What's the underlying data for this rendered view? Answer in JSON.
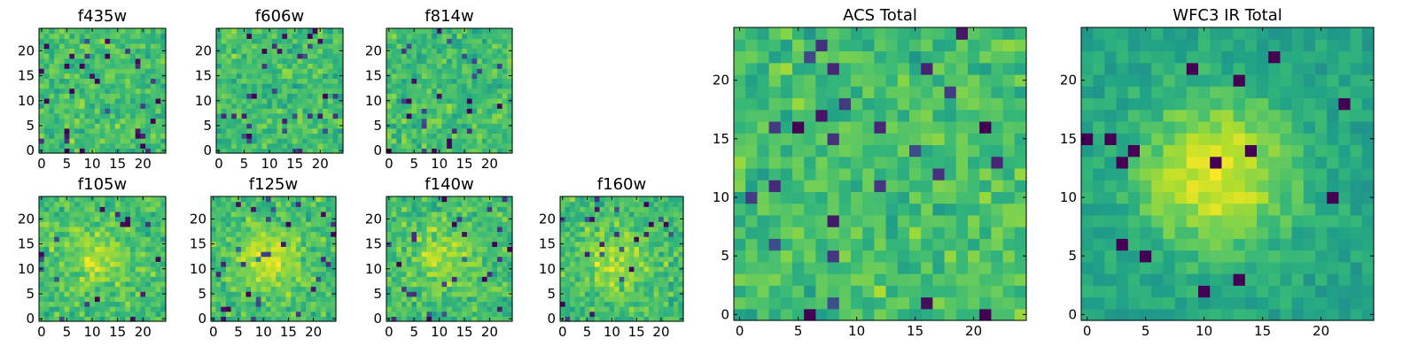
{
  "chart_data": [
    {
      "type": "heatmap",
      "title": "f435w",
      "xticks": [
        0,
        5,
        10,
        15,
        20
      ],
      "yticks": [
        0,
        5,
        10,
        15,
        20
      ],
      "xlim": [
        -0.5,
        24.5
      ],
      "ylim": [
        -0.5,
        24.5
      ],
      "grid": false,
      "colormap": "viridis",
      "shape": [
        25,
        25
      ],
      "generator": {
        "seed": 11,
        "mode": "noise",
        "blob": 0
      }
    },
    {
      "type": "heatmap",
      "title": "f606w",
      "xticks": [
        0,
        5,
        10,
        15,
        20
      ],
      "yticks": [
        0,
        5,
        10,
        15,
        20
      ],
      "xlim": [
        -0.5,
        24.5
      ],
      "ylim": [
        -0.5,
        24.5
      ],
      "grid": false,
      "colormap": "viridis",
      "shape": [
        25,
        25
      ],
      "generator": {
        "seed": 23,
        "mode": "noise",
        "blob": 0
      }
    },
    {
      "type": "heatmap",
      "title": "f814w",
      "xticks": [
        0,
        5,
        10,
        15,
        20
      ],
      "yticks": [
        0,
        5,
        10,
        15,
        20
      ],
      "xlim": [
        -0.5,
        24.5
      ],
      "ylim": [
        -0.5,
        24.5
      ],
      "grid": false,
      "colormap": "viridis",
      "shape": [
        25,
        25
      ],
      "generator": {
        "seed": 37,
        "mode": "noise",
        "blob": 0
      }
    },
    {
      "type": "heatmap",
      "title": "f105w",
      "xticks": [
        0,
        5,
        10,
        15,
        20
      ],
      "yticks": [
        0,
        5,
        10,
        15,
        20
      ],
      "xlim": [
        -0.5,
        24.5
      ],
      "ylim": [
        -0.5,
        24.5
      ],
      "grid": false,
      "colormap": "viridis",
      "shape": [
        25,
        25
      ],
      "generator": {
        "seed": 41,
        "mode": "noise",
        "blob": 0.15
      }
    },
    {
      "type": "heatmap",
      "title": "f125w",
      "xticks": [
        0,
        5,
        10,
        15,
        20
      ],
      "yticks": [
        0,
        5,
        10,
        15,
        20
      ],
      "xlim": [
        -0.5,
        24.5
      ],
      "ylim": [
        -0.5,
        24.5
      ],
      "grid": false,
      "colormap": "viridis",
      "shape": [
        25,
        25
      ],
      "generator": {
        "seed": 53,
        "mode": "noise",
        "blob": 0.2
      }
    },
    {
      "type": "heatmap",
      "title": "f140w",
      "xticks": [
        0,
        5,
        10,
        15,
        20
      ],
      "yticks": [
        0,
        5,
        10,
        15,
        20
      ],
      "xlim": [
        -0.5,
        24.5
      ],
      "ylim": [
        -0.5,
        24.5
      ],
      "grid": false,
      "colormap": "viridis",
      "shape": [
        25,
        25
      ],
      "generator": {
        "seed": 67,
        "mode": "noise",
        "blob": 0.15
      }
    },
    {
      "type": "heatmap",
      "title": "f160w",
      "xticks": [
        0,
        5,
        10,
        15,
        20
      ],
      "yticks": [
        0,
        5,
        10,
        15,
        20
      ],
      "xlim": [
        -0.5,
        24.5
      ],
      "ylim": [
        -0.5,
        24.5
      ],
      "grid": false,
      "colormap": "viridis",
      "shape": [
        25,
        25
      ],
      "generator": {
        "seed": 79,
        "mode": "noise",
        "blob": 0.15
      }
    },
    {
      "type": "heatmap",
      "title": "ACS Total",
      "xticks": [
        0,
        5,
        10,
        15,
        20
      ],
      "yticks": [
        0,
        5,
        10,
        15,
        20
      ],
      "xlim": [
        -0.5,
        24.5
      ],
      "ylim": [
        -0.5,
        24.5
      ],
      "grid": false,
      "colormap": "viridis",
      "shape": [
        25,
        25
      ],
      "generator": {
        "seed": 97,
        "mode": "noise",
        "blob": 0
      }
    },
    {
      "type": "heatmap",
      "title": "WFC3 IR Total",
      "xticks": [
        0,
        5,
        10,
        15,
        20
      ],
      "yticks": [
        0,
        5,
        10,
        15,
        20
      ],
      "xlim": [
        -0.5,
        24.5
      ],
      "ylim": [
        -0.5,
        24.5
      ],
      "grid": false,
      "colormap": "viridis",
      "shape": [
        25,
        25
      ],
      "generator": {
        "seed": 101,
        "mode": "smooth",
        "blob": 0.35
      }
    }
  ]
}
